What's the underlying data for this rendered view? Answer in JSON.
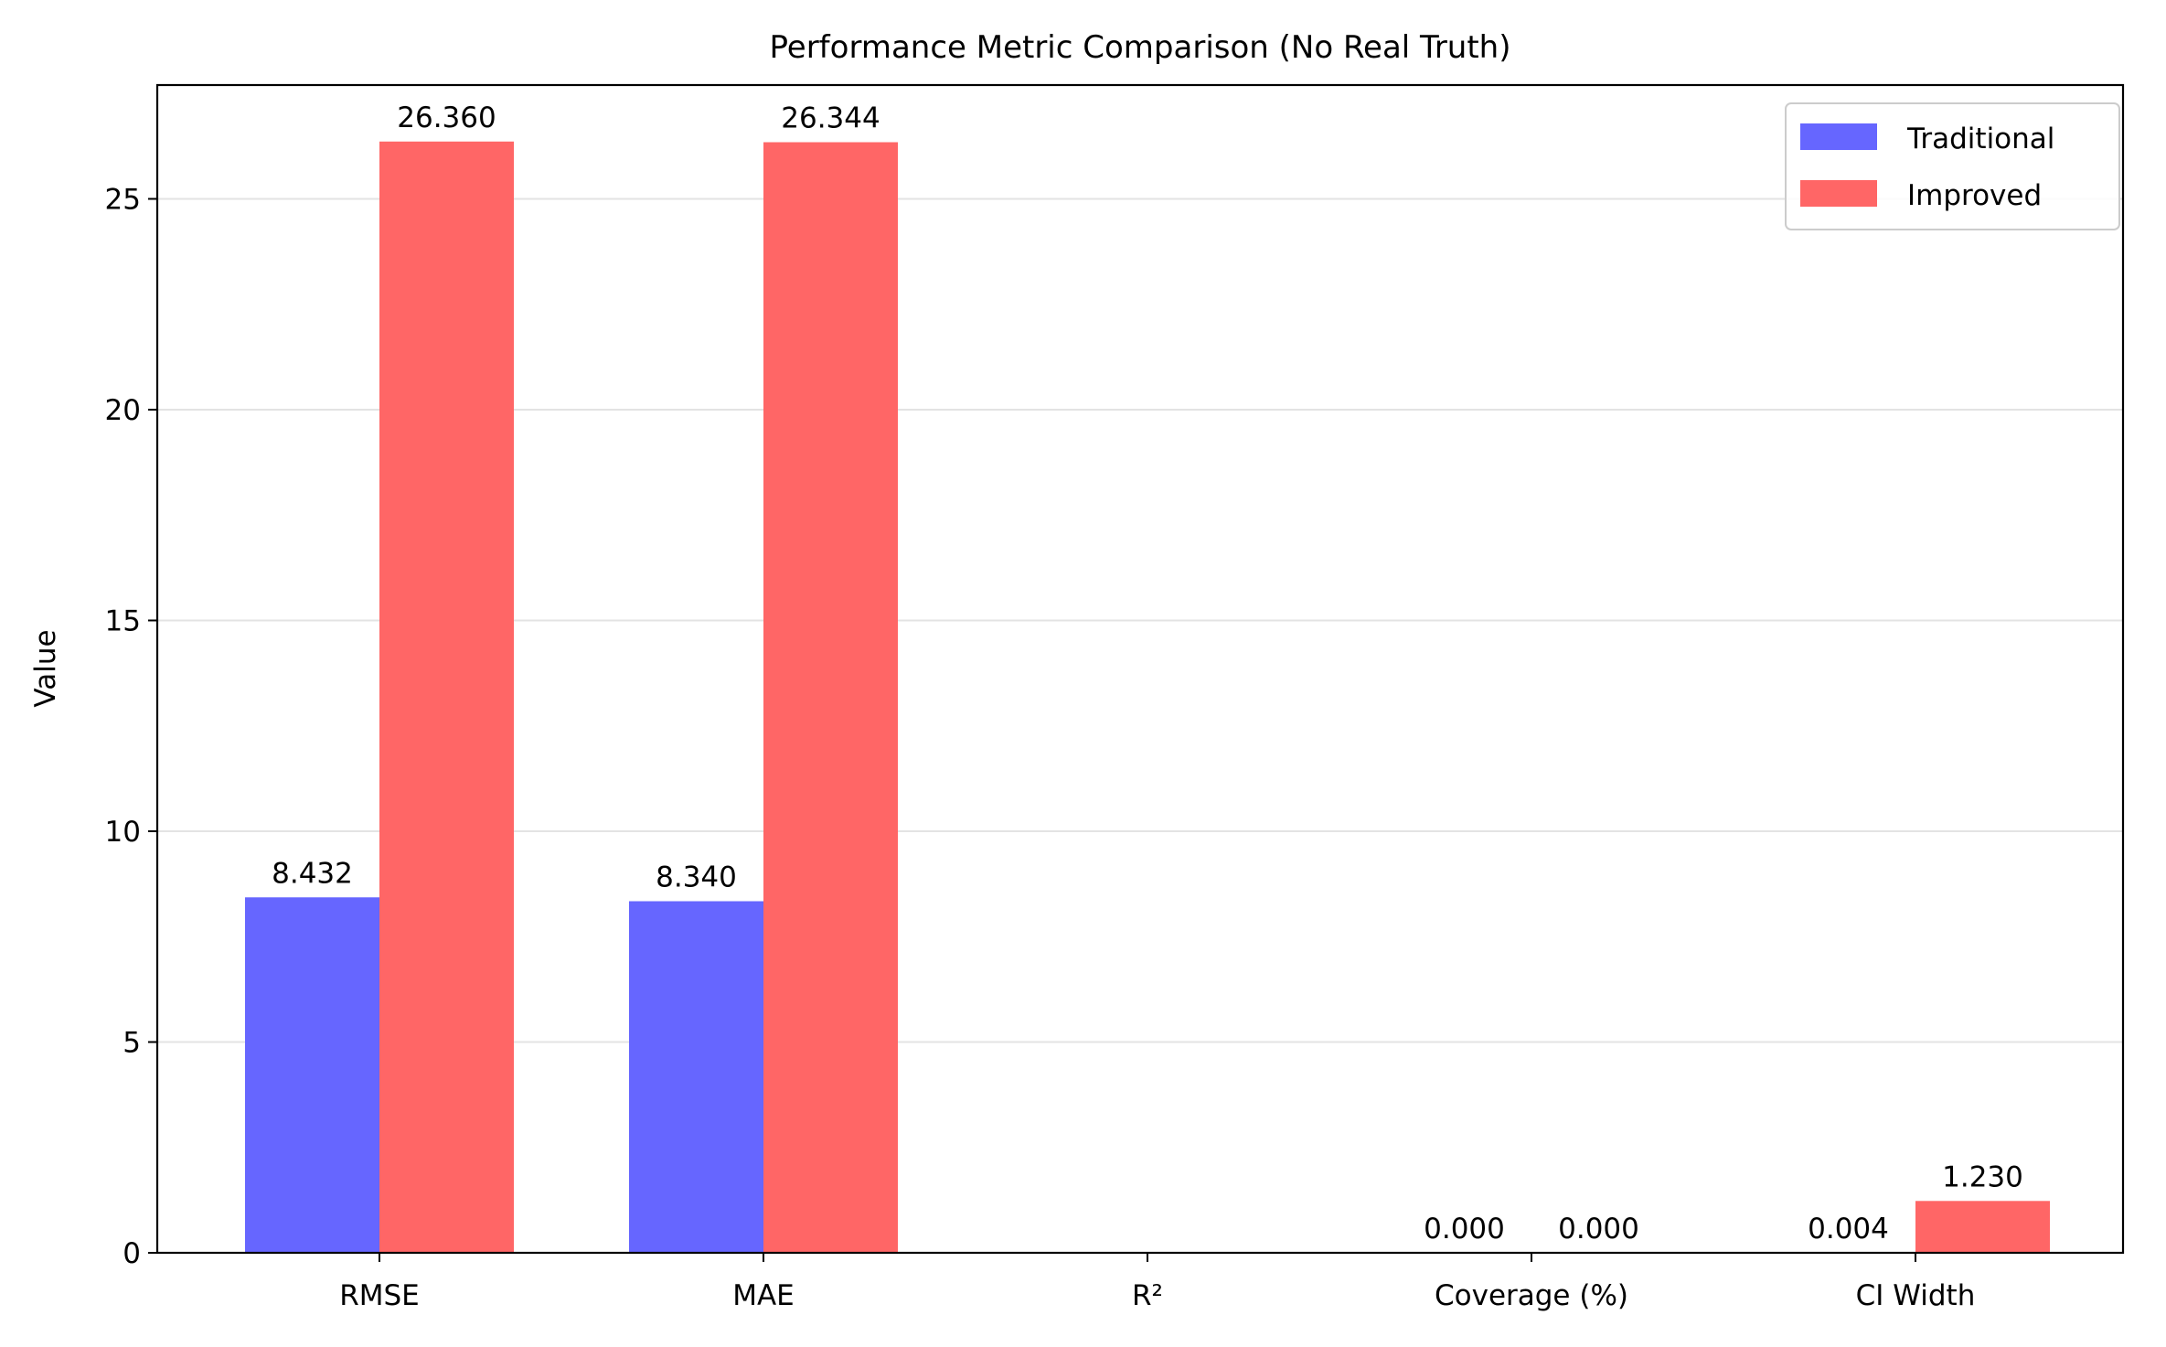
{
  "chart_data": {
    "type": "bar",
    "title": "Performance Metric Comparison (No Real Truth)",
    "xlabel": "",
    "ylabel": "Value",
    "ylim": [
      0,
      27.7
    ],
    "yticks": [
      0,
      5,
      10,
      15,
      20,
      25
    ],
    "grid": "y-axis, light gray",
    "legend_position": "top-right",
    "categories": [
      "RMSE",
      "MAE",
      "R²",
      "Coverage (%)",
      "CI Width"
    ],
    "series": [
      {
        "name": "Traditional",
        "color": "#6666ff",
        "values": [
          8.432,
          8.34,
          null,
          0.0,
          0.004
        ],
        "labels": [
          "8.432",
          "8.340",
          "",
          "0.000",
          "0.004"
        ]
      },
      {
        "name": "Improved",
        "color": "#ff6666",
        "values": [
          26.36,
          26.344,
          null,
          0.0,
          1.23
        ],
        "labels": [
          "26.360",
          "26.344",
          "",
          "0.000",
          "1.230"
        ]
      }
    ]
  }
}
